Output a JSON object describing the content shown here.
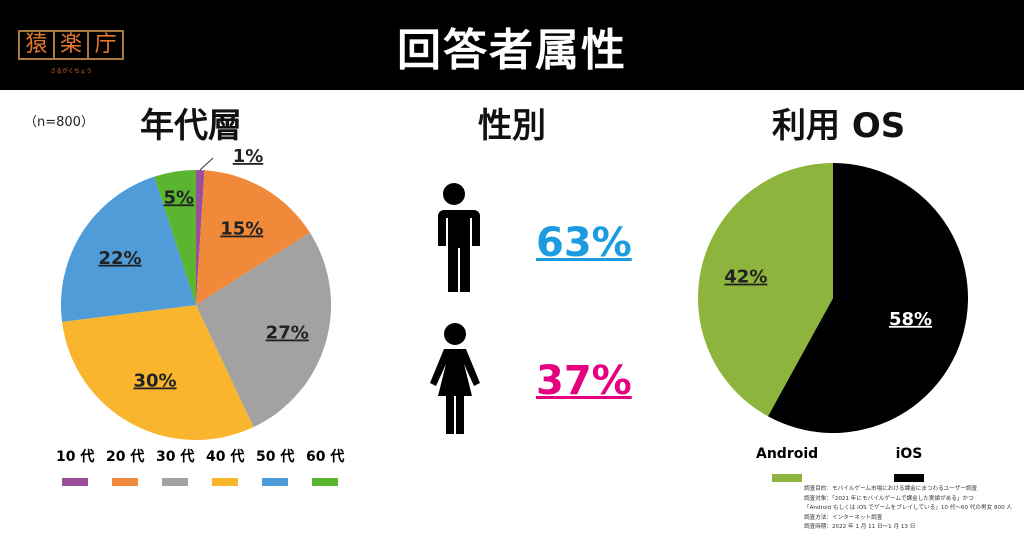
{
  "header": {
    "title": "回答者属性"
  },
  "logo": {
    "chars": [
      "猿",
      "楽",
      "庁"
    ],
    "reading": "さるがくちょう"
  },
  "sample": "（n=800）",
  "chart_data": [
    {
      "type": "pie",
      "title": "年代層",
      "labels": [
        "10 代",
        "20 代",
        "30 代",
        "40 代",
        "50 代",
        "60 代"
      ],
      "values": [
        1,
        15,
        27,
        30,
        22,
        5
      ],
      "data_labels": [
        "1%",
        "15%",
        "27%",
        "30%",
        "22%",
        "5%"
      ],
      "colors": [
        "#9a4e9c",
        "#f08a3a",
        "#a2a2a2",
        "#f8b52d",
        "#4f9cd8",
        "#5cb531"
      ],
      "legend": "bottom"
    },
    {
      "type": "pie",
      "title": "利用 OS",
      "labels": [
        "iOS",
        "Android"
      ],
      "values": [
        58,
        42
      ],
      "data_labels": [
        "58%",
        "42%"
      ],
      "colors": [
        "#000000",
        "#8db43c"
      ],
      "legend": "bottom"
    }
  ],
  "gender": {
    "title": "性別",
    "male_pct": "63%",
    "female_pct": "37%",
    "male_color": "#1c9be0",
    "female_color": "#e4007f"
  },
  "footnote": [
    "調査目的：モバイルゲーム市場における課金にまつわるユーザー調査",
    "調査対象：「2021 年にモバイルゲームで課金した実績がある」かつ",
    "「Android もしくは iOS でゲームをプレイしている」10 代〜60 代の男女 800 人",
    "調査方法：インターネット調査",
    "調査時期：2022 年 1 月 11 日〜1 月 13 日"
  ]
}
